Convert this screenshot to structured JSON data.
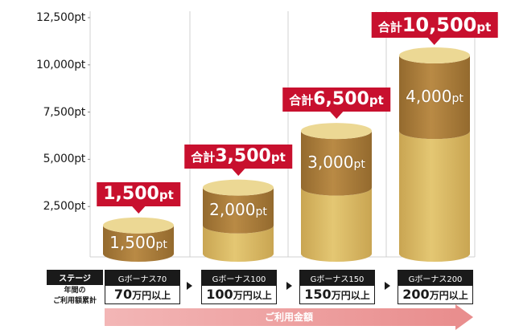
{
  "chart_data": {
    "type": "stacked-cylinder-bar",
    "ylim": [
      0,
      12500
    ],
    "yticks": [
      2500,
      5000,
      7500,
      10000,
      12500
    ],
    "ytick_labels": [
      "2,500pt",
      "5,000pt",
      "7,500pt",
      "10,000pt",
      "12,500pt"
    ],
    "grid": "vertical-lines",
    "series": [
      {
        "name": "base",
        "values": [
          0,
          1500,
          3500,
          6500
        ]
      },
      {
        "name": "added",
        "values": [
          1500,
          2000,
          3000,
          4000
        ]
      }
    ],
    "segment_labels": [
      "1,500",
      "2,000",
      "3,000",
      "4,000"
    ],
    "segment_unit": "pt",
    "total_prefix": "合計",
    "totals": [
      {
        "prefix": "",
        "value": "1,500",
        "unit": "pt"
      },
      {
        "prefix": "合計",
        "value": "3,500",
        "unit": "pt"
      },
      {
        "prefix": "合計",
        "value": "6,500",
        "unit": "pt"
      },
      {
        "prefix": "合計",
        "value": "10,500",
        "unit": "pt"
      }
    ],
    "colors": {
      "upper_face": "#b98a45",
      "upper_dark": "#946a2e",
      "lower_face": "#e4c773",
      "lower_dark": "#c9a552",
      "top_cap": "#ecd894",
      "total_bg": "#c8102e",
      "grid": "#d0d0d0"
    }
  },
  "stage_header": {
    "name": "ステージ",
    "sub1": "年間の",
    "sub2": "ご利用額累計"
  },
  "stages": [
    {
      "name": "Gボーナス70",
      "amount": "70",
      "suffix": "万円以上"
    },
    {
      "name": "Gボーナス100",
      "amount": "100",
      "suffix": "万円以上"
    },
    {
      "name": "Gボーナス150",
      "amount": "150",
      "suffix": "万円以上"
    },
    {
      "name": "Gボーナス200",
      "amount": "200",
      "suffix": "万円以上"
    }
  ],
  "usage_label": "ご利用金額"
}
